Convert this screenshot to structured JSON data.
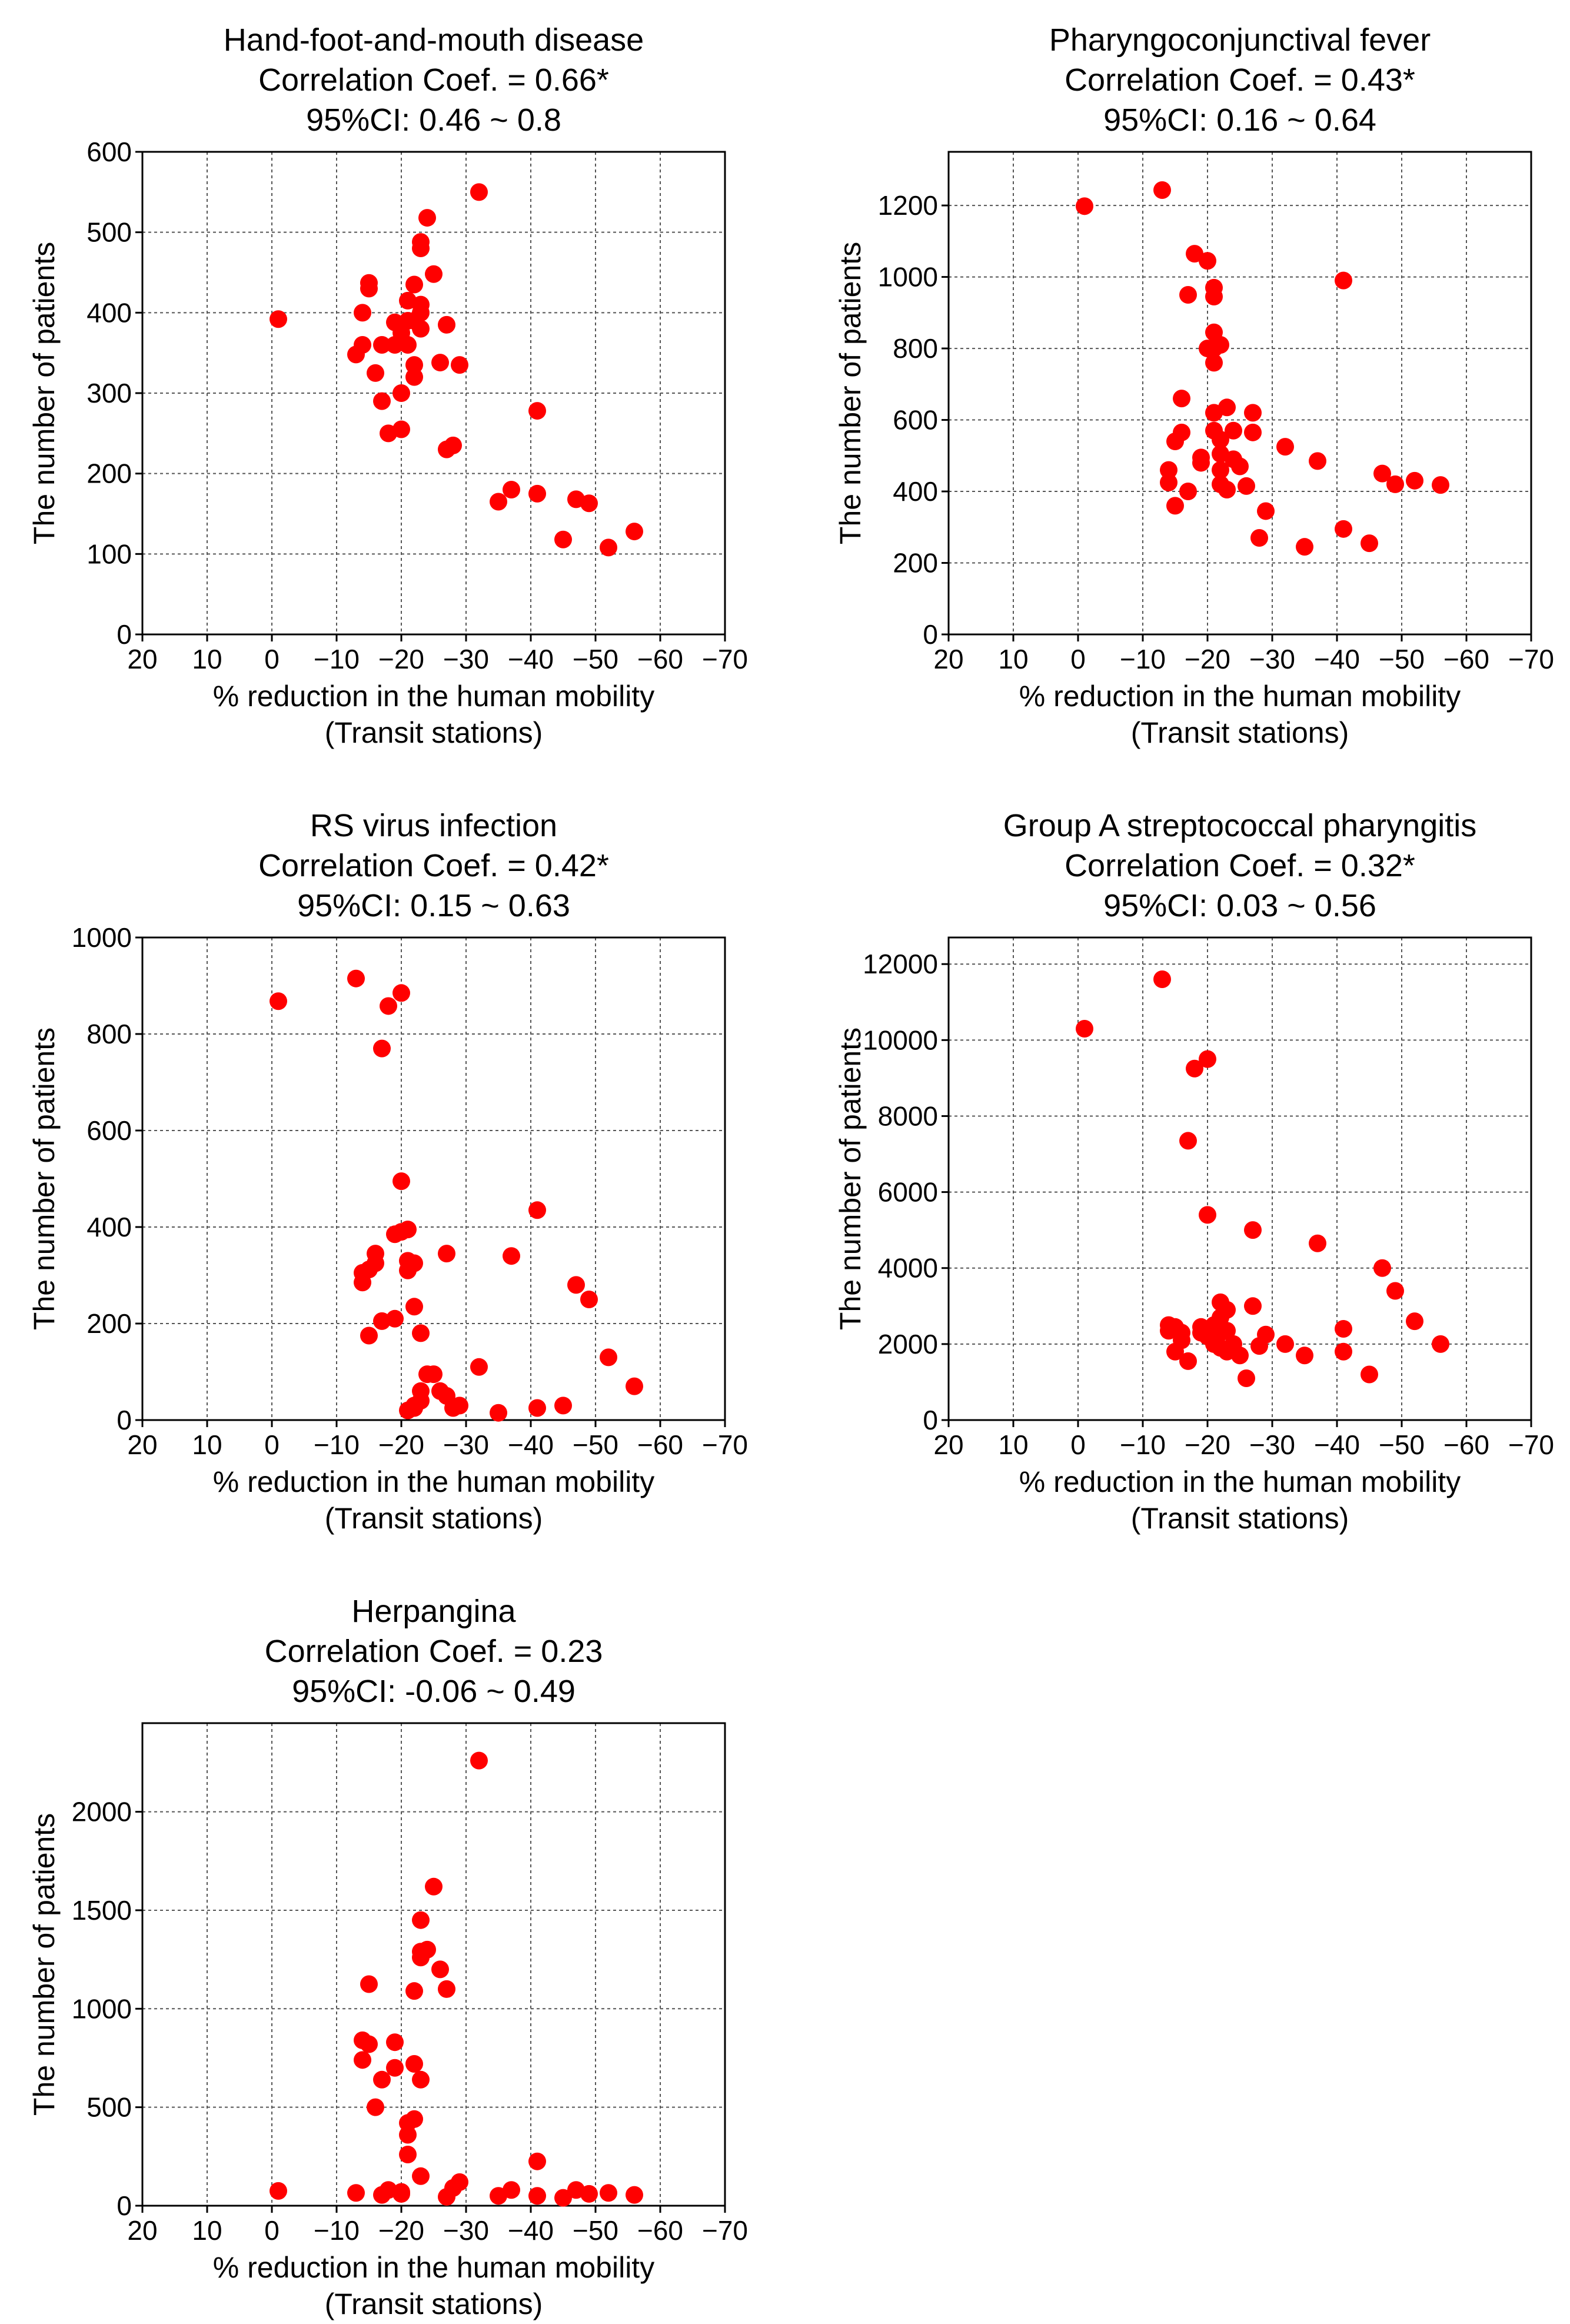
{
  "style": {
    "point_color": "#ff0000",
    "grid_color": "#555555"
  },
  "chart_data": [
    {
      "type": "scatter",
      "title": [
        "Hand-foot-and-mouth disease",
        "Correlation Coef. = 0.66*",
        "95%CI: 0.46 ~ 0.8"
      ],
      "xlabel": [
        "% reduction in the human mobility",
        "(Transit stations)"
      ],
      "ylabel": "The number of patients",
      "xlim": [
        20,
        -70
      ],
      "ylim": [
        0,
        600
      ],
      "xticks": [
        20,
        10,
        0,
        -10,
        -20,
        -30,
        -40,
        -50,
        -60,
        -70
      ],
      "xtick_labels": [
        "20",
        "10",
        "0",
        "−10",
        "−20",
        "−30",
        "−40",
        "−50",
        "−60",
        "−70"
      ],
      "yticks": [
        0,
        100,
        200,
        300,
        400,
        500,
        600
      ],
      "ytick_labels": [
        "0",
        "100",
        "200",
        "300",
        "400",
        "500",
        "600"
      ],
      "grid": true,
      "points": [
        [
          -1,
          392
        ],
        [
          -13,
          348
        ],
        [
          -14,
          360
        ],
        [
          -14,
          400
        ],
        [
          -15,
          430
        ],
        [
          -15,
          437
        ],
        [
          -16,
          325
        ],
        [
          -17,
          290
        ],
        [
          -17,
          360
        ],
        [
          -18,
          250
        ],
        [
          -19,
          388
        ],
        [
          -19,
          360
        ],
        [
          -20,
          255
        ],
        [
          -20,
          300
        ],
        [
          -20,
          375
        ],
        [
          -21,
          415
        ],
        [
          -21,
          390
        ],
        [
          -21,
          360
        ],
        [
          -22,
          320
        ],
        [
          -22,
          335
        ],
        [
          -22,
          390
        ],
        [
          -22,
          435
        ],
        [
          -23,
          410
        ],
        [
          -23,
          400
        ],
        [
          -23,
          380
        ],
        [
          -23,
          480
        ],
        [
          -23,
          488
        ],
        [
          -24,
          518
        ],
        [
          -25,
          448
        ],
        [
          -26,
          338
        ],
        [
          -27,
          385
        ],
        [
          -27,
          230
        ],
        [
          -28,
          235
        ],
        [
          -29,
          335
        ],
        [
          -32,
          550
        ],
        [
          -35,
          165
        ],
        [
          -37,
          180
        ],
        [
          -41,
          175
        ],
        [
          -41,
          278
        ],
        [
          -45,
          118
        ],
        [
          -47,
          168
        ],
        [
          -49,
          163
        ],
        [
          -52,
          108
        ],
        [
          -56,
          128
        ]
      ]
    },
    {
      "type": "scatter",
      "title": [
        "Pharyngoconjunctival fever",
        "Correlation Coef. = 0.43*",
        "95%CI: 0.16 ~ 0.64"
      ],
      "xlabel": [
        "% reduction in the human mobility",
        "(Transit stations)"
      ],
      "ylabel": "The number of patients",
      "xlim": [
        20,
        -70
      ],
      "ylim": [
        0,
        1350
      ],
      "xticks": [
        20,
        10,
        0,
        -10,
        -20,
        -30,
        -40,
        -50,
        -60,
        -70
      ],
      "xtick_labels": [
        "20",
        "10",
        "0",
        "−10",
        "−20",
        "−30",
        "−40",
        "−50",
        "−60",
        "−70"
      ],
      "yticks": [
        0,
        200,
        400,
        600,
        800,
        1000,
        1200
      ],
      "ytick_labels": [
        "0",
        "200",
        "400",
        "600",
        "800",
        "1000",
        "1200"
      ],
      "grid": true,
      "points": [
        [
          -1,
          1198
        ],
        [
          -13,
          1243
        ],
        [
          -14,
          460
        ],
        [
          -14,
          425
        ],
        [
          -15,
          360
        ],
        [
          -15,
          540
        ],
        [
          -16,
          565
        ],
        [
          -16,
          660
        ],
        [
          -17,
          400
        ],
        [
          -17,
          950
        ],
        [
          -18,
          1065
        ],
        [
          -19,
          480
        ],
        [
          -19,
          495
        ],
        [
          -20,
          1045
        ],
        [
          -20,
          800
        ],
        [
          -21,
          970
        ],
        [
          -21,
          945
        ],
        [
          -21,
          845
        ],
        [
          -21,
          800
        ],
        [
          -21,
          760
        ],
        [
          -21,
          620
        ],
        [
          -21,
          570
        ],
        [
          -22,
          810
        ],
        [
          -22,
          545
        ],
        [
          -22,
          505
        ],
        [
          -22,
          460
        ],
        [
          -22,
          420
        ],
        [
          -23,
          635
        ],
        [
          -23,
          405
        ],
        [
          -24,
          570
        ],
        [
          -24,
          490
        ],
        [
          -25,
          470
        ],
        [
          -26,
          415
        ],
        [
          -27,
          620
        ],
        [
          -27,
          565
        ],
        [
          -28,
          270
        ],
        [
          -29,
          345
        ],
        [
          -32,
          525
        ],
        [
          -35,
          245
        ],
        [
          -37,
          485
        ],
        [
          -41,
          990
        ],
        [
          -41,
          295
        ],
        [
          -45,
          255
        ],
        [
          -47,
          450
        ],
        [
          -49,
          420
        ],
        [
          -52,
          430
        ],
        [
          -56,
          418
        ]
      ]
    },
    {
      "type": "scatter",
      "title": [
        "RS virus infection",
        "Correlation Coef. = 0.42*",
        "95%CI: 0.15 ~ 0.63"
      ],
      "xlabel": [
        "% reduction in the human mobility",
        "(Transit stations)"
      ],
      "ylabel": "The number of patients",
      "xlim": [
        20,
        -70
      ],
      "ylim": [
        0,
        1000
      ],
      "xticks": [
        20,
        10,
        0,
        -10,
        -20,
        -30,
        -40,
        -50,
        -60,
        -70
      ],
      "xtick_labels": [
        "20",
        "10",
        "0",
        "−10",
        "−20",
        "−30",
        "−40",
        "−50",
        "−60",
        "−70"
      ],
      "yticks": [
        0,
        200,
        400,
        600,
        800,
        1000
      ],
      "ytick_labels": [
        "0",
        "200",
        "400",
        "600",
        "800",
        "1000"
      ],
      "grid": true,
      "points": [
        [
          -1,
          868
        ],
        [
          -13,
          915
        ],
        [
          -14,
          305
        ],
        [
          -14,
          285
        ],
        [
          -15,
          175
        ],
        [
          -15,
          312
        ],
        [
          -16,
          345
        ],
        [
          -16,
          325
        ],
        [
          -17,
          770
        ],
        [
          -17,
          205
        ],
        [
          -18,
          858
        ],
        [
          -19,
          385
        ],
        [
          -19,
          210
        ],
        [
          -20,
          885
        ],
        [
          -20,
          495
        ],
        [
          -20,
          390
        ],
        [
          -21,
          395
        ],
        [
          -21,
          330
        ],
        [
          -21,
          310
        ],
        [
          -21,
          20
        ],
        [
          -22,
          325
        ],
        [
          -22,
          235
        ],
        [
          -22,
          30
        ],
        [
          -22,
          25
        ],
        [
          -23,
          180
        ],
        [
          -23,
          60
        ],
        [
          -23,
          40
        ],
        [
          -24,
          95
        ],
        [
          -25,
          95
        ],
        [
          -26,
          60
        ],
        [
          -27,
          345
        ],
        [
          -27,
          50
        ],
        [
          -28,
          25
        ],
        [
          -29,
          30
        ],
        [
          -32,
          110
        ],
        [
          -35,
          15
        ],
        [
          -37,
          340
        ],
        [
          -41,
          435
        ],
        [
          -41,
          25
        ],
        [
          -45,
          30
        ],
        [
          -47,
          280
        ],
        [
          -49,
          250
        ],
        [
          -52,
          130
        ],
        [
          -56,
          70
        ]
      ]
    },
    {
      "type": "scatter",
      "title": [
        "Group A streptococcal pharyngitis",
        "Correlation Coef. = 0.32*",
        "95%CI: 0.03 ~ 0.56"
      ],
      "xlabel": [
        "% reduction in the human mobility",
        "(Transit stations)"
      ],
      "ylabel": "The number of patients",
      "xlim": [
        20,
        -70
      ],
      "ylim": [
        0,
        12700
      ],
      "xticks": [
        20,
        10,
        0,
        -10,
        -20,
        -30,
        -40,
        -50,
        -60,
        -70
      ],
      "xtick_labels": [
        "20",
        "10",
        "0",
        "−10",
        "−20",
        "−30",
        "−40",
        "−50",
        "−60",
        "−70"
      ],
      "yticks": [
        0,
        2000,
        4000,
        6000,
        8000,
        10000,
        12000
      ],
      "ytick_labels": [
        "0",
        "2000",
        "4000",
        "6000",
        "8000",
        "10000",
        "12000"
      ],
      "grid": true,
      "points": [
        [
          -1,
          10300
        ],
        [
          -13,
          11600
        ],
        [
          -14,
          2500
        ],
        [
          -14,
          2350
        ],
        [
          -15,
          2450
        ],
        [
          -15,
          1800
        ],
        [
          -16,
          2300
        ],
        [
          -16,
          2100
        ],
        [
          -17,
          7350
        ],
        [
          -17,
          1550
        ],
        [
          -18,
          9250
        ],
        [
          -19,
          2300
        ],
        [
          -19,
          2450
        ],
        [
          -20,
          9500
        ],
        [
          -20,
          5400
        ],
        [
          -20,
          2200
        ],
        [
          -21,
          2000
        ],
        [
          -21,
          2400
        ],
        [
          -21,
          2500
        ],
        [
          -22,
          3100
        ],
        [
          -22,
          2300
        ],
        [
          -22,
          2700
        ],
        [
          -22,
          1900
        ],
        [
          -23,
          2900
        ],
        [
          -23,
          2350
        ],
        [
          -23,
          1800
        ],
        [
          -24,
          2000
        ],
        [
          -25,
          1700
        ],
        [
          -26,
          1100
        ],
        [
          -27,
          5000
        ],
        [
          -27,
          3000
        ],
        [
          -28,
          1950
        ],
        [
          -29,
          2250
        ],
        [
          -32,
          2000
        ],
        [
          -35,
          1700
        ],
        [
          -37,
          4650
        ],
        [
          -41,
          2400
        ],
        [
          -41,
          1800
        ],
        [
          -45,
          1200
        ],
        [
          -47,
          4000
        ],
        [
          -49,
          3400
        ],
        [
          -52,
          2600
        ],
        [
          -56,
          2000
        ]
      ]
    },
    {
      "type": "scatter",
      "title": [
        "Herpangina",
        "Correlation Coef. = 0.23",
        "95%CI: -0.06 ~ 0.49"
      ],
      "xlabel": [
        "% reduction in the human mobility",
        "(Transit stations)"
      ],
      "ylabel": "The number of patients",
      "xlim": [
        20,
        -70
      ],
      "ylim": [
        0,
        2450
      ],
      "xticks": [
        20,
        10,
        0,
        -10,
        -20,
        -30,
        -40,
        -50,
        -60,
        -70
      ],
      "xtick_labels": [
        "20",
        "10",
        "0",
        "−10",
        "−20",
        "−30",
        "−40",
        "−50",
        "−60",
        "−70"
      ],
      "yticks": [
        0,
        500,
        1000,
        1500,
        2000
      ],
      "ytick_labels": [
        "0",
        "500",
        "1000",
        "1500",
        "2000"
      ],
      "grid": true,
      "points": [
        [
          -1,
          75
        ],
        [
          -13,
          65
        ],
        [
          -14,
          840
        ],
        [
          -14,
          740
        ],
        [
          -15,
          1125
        ],
        [
          -15,
          820
        ],
        [
          -16,
          500
        ],
        [
          -17,
          640
        ],
        [
          -17,
          55
        ],
        [
          -18,
          80
        ],
        [
          -19,
          830
        ],
        [
          -19,
          700
        ],
        [
          -20,
          60
        ],
        [
          -20,
          70
        ],
        [
          -21,
          260
        ],
        [
          -21,
          360
        ],
        [
          -21,
          420
        ],
        [
          -22,
          1090
        ],
        [
          -22,
          720
        ],
        [
          -22,
          440
        ],
        [
          -23,
          1450
        ],
        [
          -23,
          1290
        ],
        [
          -23,
          1260
        ],
        [
          -23,
          640
        ],
        [
          -23,
          150
        ],
        [
          -24,
          1300
        ],
        [
          -25,
          1620
        ],
        [
          -26,
          1200
        ],
        [
          -27,
          1100
        ],
        [
          -27,
          45
        ],
        [
          -28,
          90
        ],
        [
          -29,
          120
        ],
        [
          -32,
          2260
        ],
        [
          -35,
          50
        ],
        [
          -37,
          80
        ],
        [
          -41,
          225
        ],
        [
          -41,
          50
        ],
        [
          -45,
          40
        ],
        [
          -47,
          80
        ],
        [
          -49,
          60
        ],
        [
          -52,
          65
        ],
        [
          -56,
          55
        ]
      ]
    }
  ]
}
